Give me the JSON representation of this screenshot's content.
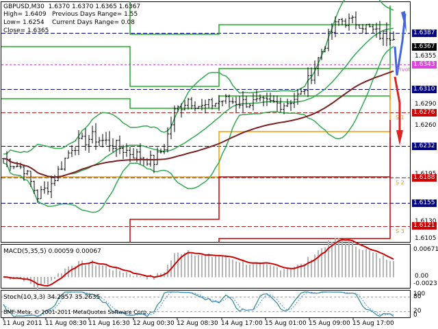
{
  "header": {
    "line1": "GBPUSD,M30  1.6370 1.6370 1.6365 1.6367",
    "line2_left": "High= 1.6409",
    "line2_right": "Previous Days Range= 1.55",
    "line3_left": "Low= 1.6254",
    "line3_right": "Current Days Range= 0.08",
    "line4": "Close= 1.6365"
  },
  "price_axis": {
    "ticks": [
      "1.6355",
      "1.6290",
      "1.6260",
      "1.6195",
      "1.6130",
      "1.6105"
    ],
    "levels": [
      {
        "label": "1.6387",
        "bg": "#000080",
        "fg": "#ffffff",
        "line": "#000080",
        "dash": "6,3"
      },
      {
        "label": "1.6367",
        "bg": "#000000",
        "fg": "#ffffff",
        "line": null,
        "dash": ""
      },
      {
        "label": "1.6343",
        "bg": "#dd44dd",
        "fg": "#ffffff",
        "line": "#cc55cc",
        "dash": "3,3"
      },
      {
        "label": "1.6310",
        "bg": "#000080",
        "fg": "#ffffff",
        "line": "#000080",
        "dash": "6,3"
      },
      {
        "label": "1.6276",
        "bg": "#cc0000",
        "fg": "#ffffff",
        "line": "#aa2222",
        "dash": "6,3"
      },
      {
        "label": "1.6232",
        "bg": "#000080",
        "fg": "#ffffff",
        "line": "#000080",
        "dash": "6,3"
      },
      {
        "label": "1.6188",
        "bg": "#cc0000",
        "fg": "#ffffff",
        "line": "#aa2222",
        "dash": "6,3"
      },
      {
        "label": "1.6155",
        "bg": "#000080",
        "fg": "#ffffff",
        "line": "#000080",
        "dash": "6,3"
      },
      {
        "label": "1.6121",
        "bg": "#cc0000",
        "fg": "#ffffff",
        "line": "#aa2222",
        "dash": "6,3"
      }
    ]
  },
  "pivot_labels": [
    "Pivot",
    "S 1",
    "S 2",
    "S 3"
  ],
  "macd": {
    "title": "MACD(5,35,5) 0.00059 0.00067",
    "ticks": [
      "0.00671",
      "0.00",
      "-0.0023"
    ]
  },
  "stoch": {
    "title": "Stoch(10,3,3) 34.2857 35.2635",
    "ticks": [
      "100",
      "80",
      "20",
      "0"
    ]
  },
  "time_axis": [
    "11 Aug 2011",
    "11 Aug 08:30",
    "11 Aug 16:30",
    "12 Aug 00:30",
    "12 Aug 08:30",
    "14 Aug 17:00",
    "15 Aug 01:00",
    "15 Aug 09:00",
    "15 Aug 17:00"
  ],
  "copyright": "BMF-Meta, © 2001-2011 MetaQuotes Software Corp.",
  "colors": {
    "bollinger": "#2fa84f",
    "ma": "#7a1f1f",
    "macd_hist": "#b4b4b4",
    "macd_signal": "#cc0000",
    "stoch_main": "#2a8a8a",
    "stoch_signal": "#4488ff",
    "box_green": "#22aa22",
    "box_orange": "#ff9900",
    "box_red": "#cc0000",
    "arrow_up": "#4466dd",
    "arrow_down": "#dd2222"
  }
}
